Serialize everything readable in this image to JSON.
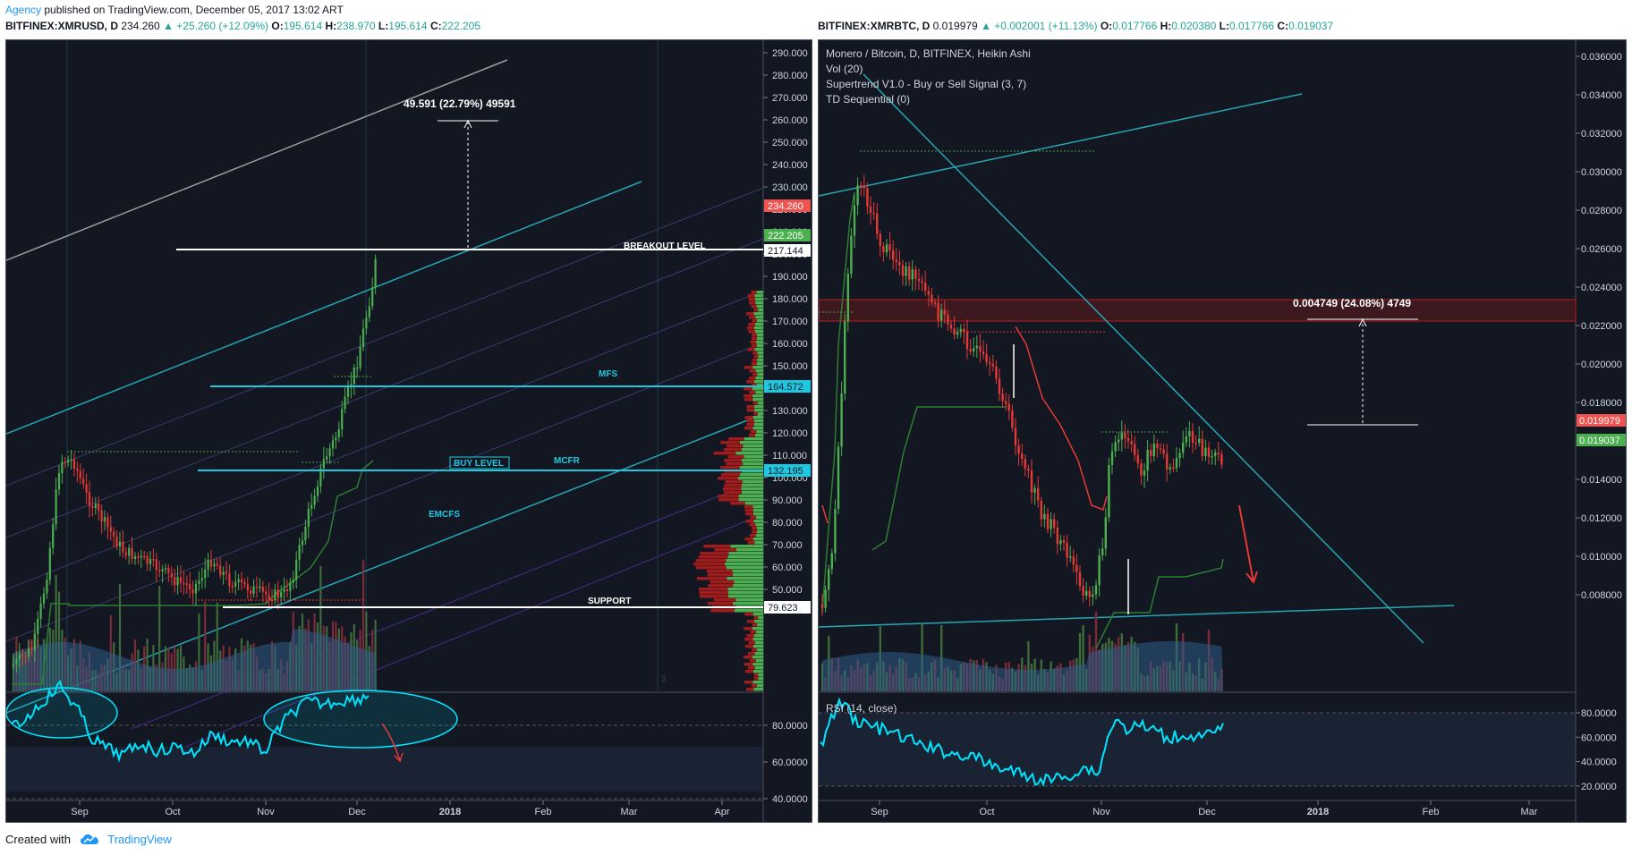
{
  "header": {
    "author": "Agency",
    "published_text": " published on TradingView.com, December 05, 2017 13:02 ART"
  },
  "left_chart": {
    "ticker": "BITFINEX:XMRUSD, D",
    "last": "234.260",
    "change": "+25.260 (+12.09%)",
    "o_label": "O:",
    "o": "195.614",
    "h_label": "H:",
    "h": "238.970",
    "l_label": "L:",
    "l": "195.614",
    "c_label": "C:",
    "c": "222.205",
    "price_ticks": [
      "290.000",
      "280.000",
      "270.000",
      "260.000",
      "250.000",
      "240.000",
      "230.000",
      "220.000",
      "210.000",
      "200.000",
      "190.000",
      "180.000",
      "170.000",
      "160.000",
      "150.000",
      "140.000",
      "130.000",
      "120.000",
      "110.000",
      "100.000",
      "90.000",
      "80.000",
      "70.000",
      "60.000",
      "50.000"
    ],
    "badges": {
      "last": "234.260",
      "close": "222.205",
      "breakout": "217.144",
      "mfs": "164.572",
      "buy": "132.195",
      "support": "79.623"
    },
    "labels": {
      "breakout": "BREAKOUT LEVEL",
      "mfs": "MFS",
      "buy": "BUY LEVEL",
      "mcfr": "MCFR",
      "emcfs": "EMCFS",
      "support": "SUPPORT",
      "measure": "49.591 (22.79%) 49591",
      "small": "3"
    },
    "rsi_ticks": [
      "80.0000",
      "60.0000",
      "40.0000"
    ],
    "time_ticks": [
      "Sep",
      "Oct",
      "Nov",
      "Dec",
      "2018",
      "Feb",
      "Mar",
      "Apr"
    ]
  },
  "right_chart": {
    "ticker": "BITFINEX:XMRBTC, D",
    "last": "0.019979",
    "change": "+0.002001 (+11.13%)",
    "o_label": "O:",
    "o": "0.017766",
    "h_label": "H:",
    "h": "0.020380",
    "l_label": "L:",
    "l": "0.017766",
    "c_label": "C:",
    "c": "0.019037",
    "legend": [
      "Monero / Bitcoin, D, BITFINEX, Heikin Ashi",
      "Vol (20)",
      "Supertrend V1.0 - Buy or Sell Signal (3, 7)",
      "TD Sequential (0)"
    ],
    "price_ticks": [
      "0.036000",
      "0.034000",
      "0.032000",
      "0.030000",
      "0.028000",
      "0.026000",
      "0.024000",
      "0.022000",
      "0.020000",
      "0.018000",
      "0.016000",
      "0.014000",
      "0.012000",
      "0.010000",
      "0.008000"
    ],
    "badges": {
      "last": "0.019979",
      "close": "0.019037"
    },
    "measure": "0.004749 (24.08%) 4749",
    "rsi_label": "RSI (14, close)",
    "rsi_ticks": [
      "80.0000",
      "60.0000",
      "40.0000",
      "20.0000"
    ],
    "time_ticks": [
      "Sep",
      "Oct",
      "Nov",
      "Dec",
      "2018",
      "Feb",
      "Mar"
    ]
  },
  "footer": {
    "created_with": "Created with",
    "brand": "TradingView"
  },
  "colors": {
    "background": "#131722",
    "bull": "#4caf50",
    "bear": "#e53935",
    "cyan": "#00bcd4",
    "teal_line": "#26a6b5",
    "buy_level": "#1ec8e0",
    "badge_last": "#ef5350",
    "badge_close": "#4caf50"
  }
}
